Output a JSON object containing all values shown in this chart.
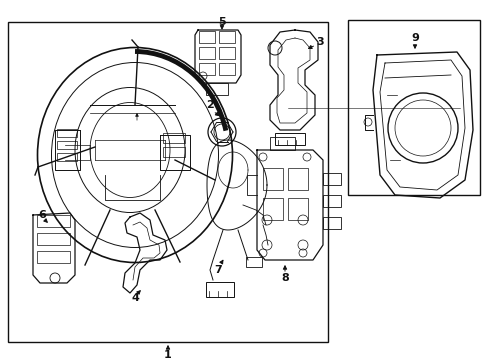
{
  "bg_color": "#ffffff",
  "line_color": "#111111",
  "fig_width": 4.89,
  "fig_height": 3.6,
  "dpi": 100
}
